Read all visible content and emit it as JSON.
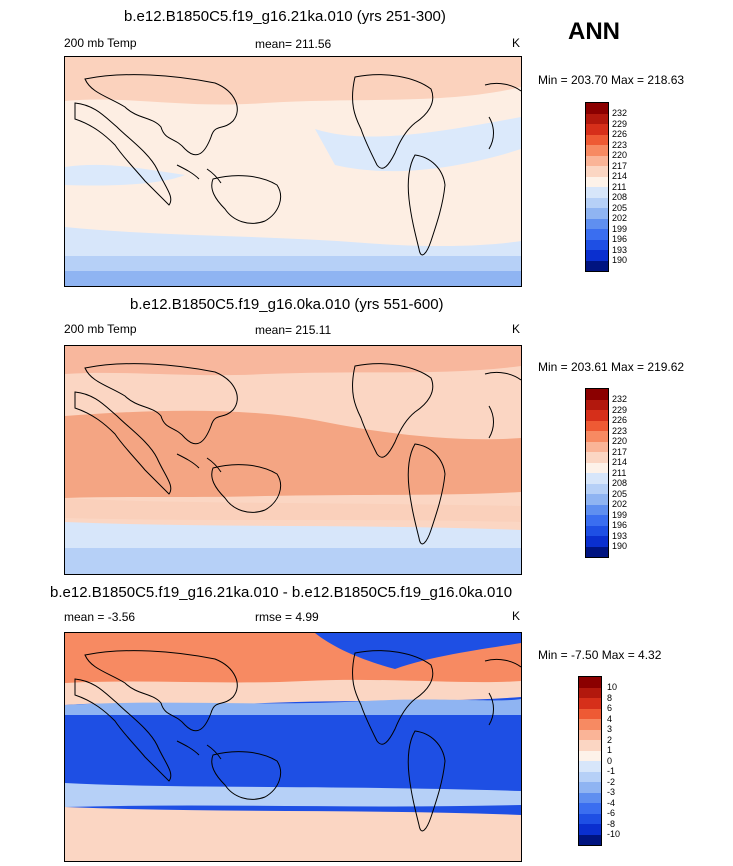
{
  "header": {
    "season": "ANN"
  },
  "panels": [
    {
      "title": "b.e12.B1850C5.f19_g16.21ka.010 (yrs 251-300)",
      "left_label": "200 mb Temp",
      "center_label": "mean= 211.56",
      "units": "K",
      "min_max": "Min = 203.70 Max = 218.63",
      "colorbar": {
        "labels": [
          "232",
          "229",
          "226",
          "223",
          "220",
          "217",
          "214",
          "211",
          "208",
          "205",
          "202",
          "199",
          "196",
          "193",
          "190"
        ],
        "colors": [
          "#8b0000",
          "#b2180d",
          "#d62f1a",
          "#ee5a34",
          "#f78a62",
          "#fab497",
          "#fbd6c3",
          "#fdf2e9",
          "#d7e6fa",
          "#b6d0f7",
          "#8fb4f2",
          "#5f8ff0",
          "#3a6ef0",
          "#1e4fe4",
          "#0a2fcf",
          "#001480"
        ]
      },
      "fields": {
        "base": "#fdeee3",
        "bands": [
          {
            "name": "northern-warm-band",
            "color": "#fbd2bd"
          },
          {
            "name": "tropical-cool-belt",
            "color": "#dbe9fb"
          },
          {
            "name": "southern-cool-band",
            "color": "#d7e6fa"
          },
          {
            "name": "antarctic-band",
            "color": "#b6d0f7"
          },
          {
            "name": "antarctic-cold",
            "color": "#8fb4f2"
          }
        ]
      }
    },
    {
      "title": "b.e12.B1850C5.f19_g16.0ka.010 (yrs 551-600)",
      "left_label": "200 mb Temp",
      "center_label": "mean= 215.11",
      "units": "K",
      "min_max": "Min = 203.61 Max = 219.62",
      "colorbar": {
        "labels": [
          "232",
          "229",
          "226",
          "223",
          "220",
          "217",
          "214",
          "211",
          "208",
          "205",
          "202",
          "199",
          "196",
          "193",
          "190"
        ],
        "colors": [
          "#8b0000",
          "#b2180d",
          "#d62f1a",
          "#ee5a34",
          "#f78a62",
          "#fab497",
          "#fbd6c3",
          "#fdf2e9",
          "#d7e6fa",
          "#b6d0f7",
          "#8fb4f2",
          "#5f8ff0",
          "#3a6ef0",
          "#1e4fe4",
          "#0a2fcf",
          "#001480"
        ]
      },
      "fields": {
        "base": "#fbd6c3",
        "bands": [
          {
            "name": "northern-warm-band",
            "color": "#f8b79d"
          },
          {
            "name": "tropical-warm-belt",
            "color": "#f4a583"
          },
          {
            "name": "southern-warm-band",
            "color": "#fad0bb"
          },
          {
            "name": "southern-cool-band",
            "color": "#d7e6fa"
          },
          {
            "name": "antarctic-band",
            "color": "#b6d0f7"
          }
        ]
      }
    },
    {
      "title": "b.e12.B1850C5.f19_g16.21ka.010 - b.e12.B1850C5.f19_g16.0ka.010",
      "left_label": "mean =  -3.56",
      "center_label": "rmse =   4.99",
      "units": "K",
      "min_max": "Min =  -7.50 Max =   4.32",
      "colorbar": {
        "labels": [
          "10",
          "8",
          "6",
          "4",
          "3",
          "2",
          "1",
          "0",
          "-1",
          "-2",
          "-3",
          "-4",
          "-6",
          "-8",
          "-10"
        ],
        "colors": [
          "#8b0000",
          "#b2180d",
          "#d62f1a",
          "#ee5a34",
          "#f78a62",
          "#fab497",
          "#fbd6c3",
          "#fdf2e9",
          "#d7e6fa",
          "#b6d0f7",
          "#8fb4f2",
          "#5f8ff0",
          "#3a6ef0",
          "#1e4fe4",
          "#0a2fcf",
          "#001480"
        ]
      },
      "fields": {
        "base": "#1e4fe4",
        "bands": [
          {
            "name": "arctic-warm",
            "color": "#f78a62"
          },
          {
            "name": "northern-transition",
            "color": "#fbd6c3"
          },
          {
            "name": "northern-cool-band",
            "color": "#8fb4f2"
          },
          {
            "name": "tropical-cold-core",
            "color": "#1e4fe4"
          },
          {
            "name": "southern-cool-band",
            "color": "#b6d0f7"
          },
          {
            "name": "southern-warm-band",
            "color": "#fbd6c3"
          }
        ]
      }
    }
  ]
}
